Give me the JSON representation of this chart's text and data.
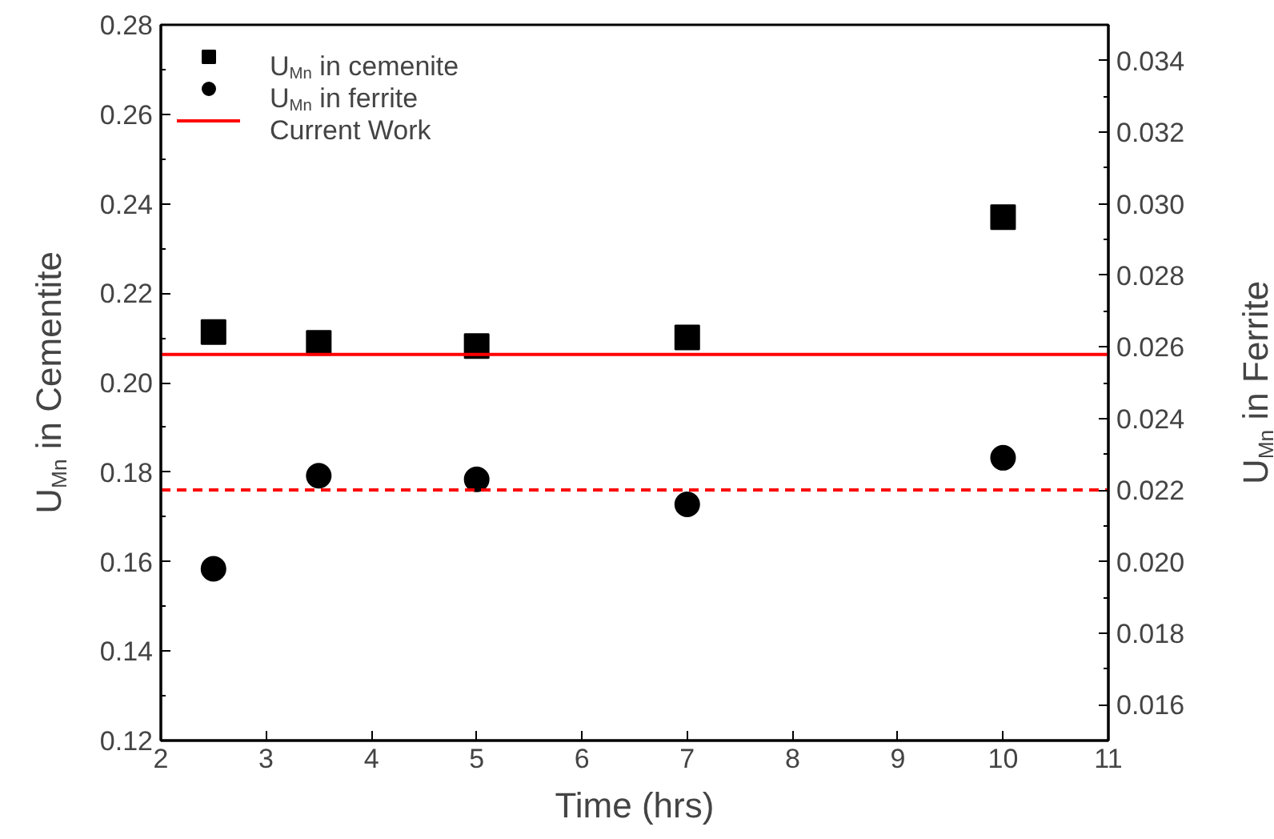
{
  "chart_data": {
    "type": "scatter",
    "xlabel": "Time (hrs)",
    "ylabel": "U$_{Mn}$ in Cementite",
    "y2label": "U$_{Mn}$ in Ferrite",
    "x": [
      2.5,
      3.5,
      5,
      7,
      10
    ],
    "series": [
      {
        "name": "U$_{Mn}$ in cemenite",
        "color": "#000000",
        "marker": "square",
        "values": [
          0.2113,
          0.2089,
          0.2082,
          0.2101,
          0.237
        ]
      },
      {
        "name": "U$_{Mn}$ in ferrite",
        "color": "#000000",
        "marker": "circle",
        "axis": "y2",
        "values": [
          0.0198,
          0.0224,
          0.0223,
          0.0216,
          0.0229
        ]
      }
    ],
    "ref_lines": [
      {
        "axis": "y",
        "value": 0.2063,
        "label": "Current Work",
        "color": "#ff0000",
        "line_style": "solid"
      },
      {
        "axis": "y2",
        "value": 0.022,
        "color": "#ff0000",
        "line_style": "dashed"
      }
    ],
    "xlim": [
      2,
      11
    ],
    "xticks": [
      2,
      3,
      4,
      5,
      6,
      7,
      8,
      9,
      10,
      11
    ],
    "ylim": [
      0.12,
      0.28
    ],
    "yticks": [
      0.12,
      0.14,
      0.16,
      0.18,
      {
        "value": 0.2,
        "label": "0.20"
      },
      0.22,
      0.24,
      0.26,
      0.28
    ],
    "y2lim": [
      0.015,
      0.035
    ],
    "y2ticks": [
      0.016,
      0.018,
      {
        "value": 0.02,
        "label": "0.020"
      },
      0.022,
      0.024,
      0.026,
      0.028,
      {
        "value": 0.03,
        "label": "0.030"
      },
      0.032,
      0.034
    ],
    "grid": false,
    "legend": "top left"
  }
}
